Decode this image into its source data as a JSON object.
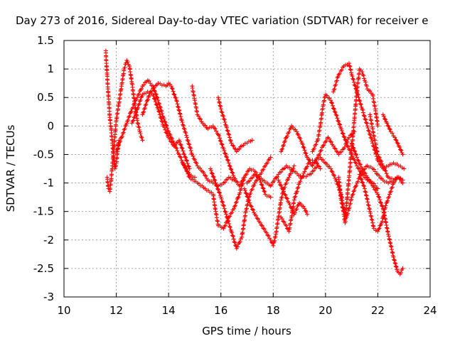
{
  "chart_data": {
    "type": "scatter",
    "title": "Day 273 of 2016, Sidereal Day-to-day VTEC variation (SDTVAR) for receiver e",
    "xlabel": "GPS time / hours",
    "ylabel": "SDTVAR / TECUs",
    "xlim": [
      10,
      24
    ],
    "ylim": [
      -3,
      1.5
    ],
    "xticks": [
      "10",
      "12",
      "14",
      "16",
      "18",
      "20",
      "22",
      "24"
    ],
    "yticks": [
      "1.5",
      "1",
      "0.5",
      "0",
      "-0.5",
      "-1",
      "-1.5",
      "-2",
      "-2.5",
      "-3"
    ],
    "grid": true,
    "marker": "+",
    "color": "#ff0000",
    "series": [
      {
        "points": [
          [
            11.6,
            1.32
          ],
          [
            11.62,
            1.1
          ],
          [
            11.65,
            0.9
          ],
          [
            11.68,
            0.65
          ],
          [
            11.72,
            0.4
          ],
          [
            11.75,
            0.15
          ],
          [
            11.8,
            -0.05
          ],
          [
            11.85,
            -0.3
          ],
          [
            11.9,
            -0.55
          ],
          [
            11.95,
            -0.75
          ],
          [
            12.0,
            -0.65
          ],
          [
            12.05,
            -0.45
          ],
          [
            12.1,
            -0.25
          ]
        ]
      },
      {
        "points": [
          [
            11.65,
            -0.9
          ],
          [
            11.7,
            -1.1
          ],
          [
            11.75,
            -1.15
          ],
          [
            11.8,
            -0.95
          ],
          [
            11.85,
            -0.7
          ],
          [
            11.9,
            -0.45
          ],
          [
            11.95,
            -0.15
          ],
          [
            12.0,
            0.1
          ],
          [
            12.1,
            0.4
          ],
          [
            12.2,
            0.7
          ],
          [
            12.3,
            1.0
          ],
          [
            12.4,
            1.15
          ],
          [
            12.5,
            1.05
          ],
          [
            12.6,
            0.75
          ],
          [
            12.7,
            0.4
          ],
          [
            12.8,
            0.1
          ],
          [
            12.9,
            -0.1
          ],
          [
            13.0,
            -0.25
          ]
        ]
      },
      {
        "points": [
          [
            12.0,
            -0.45
          ],
          [
            12.2,
            -0.2
          ],
          [
            12.4,
            0.05
          ],
          [
            12.6,
            0.3
          ],
          [
            12.8,
            0.5
          ],
          [
            13.0,
            0.7
          ],
          [
            13.2,
            0.8
          ],
          [
            13.4,
            0.7
          ],
          [
            13.6,
            0.45
          ],
          [
            13.8,
            0.15
          ],
          [
            14.0,
            -0.1
          ],
          [
            14.2,
            -0.3
          ],
          [
            14.4,
            -0.5
          ],
          [
            14.6,
            -0.7
          ],
          [
            14.8,
            -0.85
          ],
          [
            15.0,
            -0.9
          ]
        ]
      },
      {
        "points": [
          [
            12.6,
            0.05
          ],
          [
            12.8,
            0.3
          ],
          [
            13.0,
            0.55
          ],
          [
            13.2,
            0.6
          ],
          [
            13.4,
            0.55
          ],
          [
            13.6,
            0.3
          ],
          [
            13.8,
            0.0
          ],
          [
            14.0,
            -0.2
          ],
          [
            14.2,
            -0.35
          ],
          [
            14.4,
            -0.25
          ],
          [
            14.6,
            -0.5
          ],
          [
            14.8,
            -0.75
          ]
        ]
      },
      {
        "points": [
          [
            13.0,
            0.2
          ],
          [
            13.3,
            0.6
          ],
          [
            13.6,
            0.75
          ],
          [
            13.9,
            0.7
          ],
          [
            14.0,
            0.75
          ],
          [
            14.1,
            0.7
          ],
          [
            14.3,
            0.45
          ],
          [
            14.5,
            0.1
          ],
          [
            14.7,
            -0.2
          ],
          [
            14.9,
            -0.5
          ],
          [
            15.1,
            -0.7
          ],
          [
            15.3,
            -0.8
          ],
          [
            15.5,
            -0.95
          ],
          [
            15.7,
            -1.0
          ],
          [
            15.9,
            -1.05
          ],
          [
            16.1,
            -1.0
          ],
          [
            16.3,
            -0.9
          ],
          [
            16.5,
            -0.95
          ]
        ]
      },
      {
        "points": [
          [
            14.9,
            0.7
          ],
          [
            15.0,
            0.45
          ],
          [
            15.1,
            0.2
          ],
          [
            15.3,
            0.05
          ],
          [
            15.5,
            -0.05
          ],
          [
            15.7,
            0.0
          ],
          [
            15.9,
            -0.15
          ],
          [
            16.1,
            -0.4
          ],
          [
            16.3,
            -0.65
          ],
          [
            16.5,
            -0.9
          ],
          [
            16.7,
            -1.05
          ],
          [
            16.9,
            -0.9
          ],
          [
            17.1,
            -0.75
          ],
          [
            17.3,
            -0.8
          ],
          [
            17.5,
            -0.95
          ],
          [
            17.7,
            -1.2
          ],
          [
            17.9,
            -1.25
          ]
        ]
      },
      {
        "points": [
          [
            15.9,
            0.5
          ],
          [
            16.0,
            0.3
          ],
          [
            16.2,
            0.0
          ],
          [
            16.4,
            -0.3
          ],
          [
            16.6,
            -0.45
          ],
          [
            16.8,
            -0.35
          ],
          [
            17.0,
            -0.3
          ],
          [
            17.2,
            -0.25
          ]
        ]
      },
      {
        "points": [
          [
            14.5,
            -0.6
          ],
          [
            14.8,
            -0.9
          ],
          [
            15.1,
            -1.0
          ],
          [
            15.4,
            -1.1
          ],
          [
            15.7,
            -1.2
          ],
          [
            15.8,
            -1.5
          ],
          [
            15.9,
            -1.75
          ],
          [
            16.1,
            -1.8
          ],
          [
            16.3,
            -1.6
          ],
          [
            16.5,
            -1.45
          ],
          [
            16.7,
            -1.2
          ],
          [
            16.9,
            -0.9
          ]
        ]
      },
      {
        "points": [
          [
            15.6,
            -0.75
          ],
          [
            15.8,
            -1.0
          ],
          [
            16.0,
            -1.25
          ],
          [
            16.2,
            -1.55
          ],
          [
            16.4,
            -1.85
          ],
          [
            16.6,
            -2.15
          ],
          [
            16.8,
            -1.95
          ],
          [
            16.95,
            -1.5
          ],
          [
            17.1,
            -1.2
          ],
          [
            17.3,
            -1.0
          ],
          [
            17.5,
            -0.85
          ],
          [
            17.7,
            -0.7
          ],
          [
            17.9,
            -0.55
          ]
        ]
      },
      {
        "points": [
          [
            16.9,
            -1.1
          ],
          [
            17.1,
            -1.35
          ],
          [
            17.3,
            -1.55
          ],
          [
            17.5,
            -1.7
          ],
          [
            17.7,
            -1.85
          ],
          [
            17.9,
            -2.0
          ],
          [
            18.0,
            -2.1
          ],
          [
            18.1,
            -1.9
          ],
          [
            18.2,
            -1.6
          ],
          [
            18.3,
            -1.3
          ],
          [
            18.4,
            -1.1
          ],
          [
            18.6,
            -0.9
          ],
          [
            18.8,
            -0.7
          ]
        ]
      },
      {
        "points": [
          [
            17.0,
            -1.0
          ],
          [
            17.3,
            -0.85
          ],
          [
            17.6,
            -0.95
          ],
          [
            17.9,
            -1.05
          ],
          [
            18.2,
            -0.85
          ],
          [
            18.5,
            -0.7
          ],
          [
            18.8,
            -0.8
          ],
          [
            19.1,
            -0.9
          ],
          [
            19.4,
            -0.85
          ],
          [
            19.7,
            -0.7
          ]
        ]
      },
      {
        "points": [
          [
            18.2,
            -0.95
          ],
          [
            18.4,
            -1.15
          ],
          [
            18.6,
            -1.35
          ],
          [
            18.8,
            -1.55
          ],
          [
            19.0,
            -1.35
          ],
          [
            19.2,
            -1.45
          ],
          [
            19.3,
            -1.55
          ]
        ]
      },
      {
        "points": [
          [
            18.3,
            -1.6
          ],
          [
            18.5,
            -1.75
          ],
          [
            18.6,
            -1.85
          ],
          [
            18.7,
            -1.6
          ],
          [
            18.8,
            -1.3
          ],
          [
            19.0,
            -1.0
          ],
          [
            19.2,
            -0.8
          ],
          [
            19.4,
            -0.6
          ],
          [
            19.6,
            -0.6
          ],
          [
            19.8,
            -0.75
          ]
        ]
      },
      {
        "points": [
          [
            18.3,
            -0.45
          ],
          [
            18.5,
            -0.2
          ],
          [
            18.7,
            0.0
          ],
          [
            18.9,
            -0.1
          ],
          [
            19.1,
            -0.3
          ],
          [
            19.3,
            -0.55
          ],
          [
            19.5,
            -0.7
          ],
          [
            19.7,
            -0.55
          ],
          [
            19.9,
            -0.35
          ],
          [
            20.1,
            -0.2
          ],
          [
            20.3,
            -0.35
          ],
          [
            20.5,
            -0.5
          ],
          [
            20.7,
            -0.4
          ],
          [
            20.9,
            -0.2
          ],
          [
            21.1,
            -0.1
          ]
        ]
      },
      {
        "points": [
          [
            19.5,
            -0.45
          ],
          [
            19.7,
            -0.25
          ],
          [
            19.8,
            0.0
          ],
          [
            19.9,
            0.35
          ],
          [
            20.0,
            0.55
          ],
          [
            20.2,
            0.45
          ],
          [
            20.4,
            0.2
          ],
          [
            20.6,
            -0.05
          ],
          [
            20.8,
            -0.3
          ],
          [
            21.0,
            -0.5
          ],
          [
            21.2,
            -0.7
          ],
          [
            21.4,
            -0.85
          ],
          [
            21.6,
            -0.95
          ],
          [
            21.8,
            -1.0
          ],
          [
            22.0,
            -1.1
          ]
        ]
      },
      {
        "points": [
          [
            19.6,
            -0.6
          ],
          [
            19.8,
            -0.55
          ],
          [
            20.0,
            -0.65
          ],
          [
            20.2,
            -0.75
          ],
          [
            20.4,
            -0.95
          ],
          [
            20.6,
            -1.2
          ],
          [
            20.7,
            -1.45
          ],
          [
            20.8,
            -1.6
          ],
          [
            20.9,
            -1.45
          ],
          [
            21.0,
            -1.25
          ],
          [
            21.2,
            -1.0
          ],
          [
            21.4,
            -0.8
          ],
          [
            21.6,
            -0.7
          ],
          [
            21.8,
            -0.75
          ],
          [
            22.0,
            -0.85
          ],
          [
            22.2,
            -0.95
          ],
          [
            22.4,
            -1.0
          ],
          [
            22.6,
            -0.95
          ],
          [
            22.8,
            -0.9
          ],
          [
            22.95,
            -0.95
          ]
        ]
      },
      {
        "points": [
          [
            20.5,
            -0.9
          ],
          [
            20.6,
            -1.3
          ],
          [
            20.7,
            -1.55
          ],
          [
            20.75,
            -1.7
          ],
          [
            20.8,
            -1.4
          ],
          [
            20.9,
            -0.9
          ],
          [
            21.0,
            -0.4
          ],
          [
            21.1,
            0.1
          ],
          [
            21.2,
            0.6
          ],
          [
            21.3,
            1.0
          ],
          [
            21.4,
            0.95
          ],
          [
            21.5,
            0.8
          ],
          [
            21.6,
            0.65
          ],
          [
            21.8,
            0.55
          ],
          [
            21.9,
            0.3
          ],
          [
            22.0,
            0.0
          ]
        ]
      },
      {
        "points": [
          [
            20.3,
            0.6
          ],
          [
            20.5,
            0.9
          ],
          [
            20.7,
            1.05
          ],
          [
            20.9,
            1.1
          ],
          [
            21.0,
            0.9
          ],
          [
            21.2,
            0.6
          ],
          [
            21.4,
            0.3
          ],
          [
            21.6,
            0.0
          ],
          [
            21.8,
            -0.3
          ],
          [
            22.0,
            -0.6
          ],
          [
            22.2,
            -0.75
          ],
          [
            22.4,
            -0.7
          ],
          [
            22.6,
            -0.65
          ],
          [
            22.8,
            -0.7
          ],
          [
            23.0,
            -0.75
          ]
        ]
      },
      {
        "points": [
          [
            21.0,
            -0.3
          ],
          [
            21.2,
            -0.55
          ],
          [
            21.4,
            -0.75
          ],
          [
            21.6,
            -0.9
          ],
          [
            21.8,
            -1.05
          ],
          [
            22.0,
            -1.2
          ],
          [
            22.2,
            -1.45
          ],
          [
            22.4,
            -1.9
          ],
          [
            22.6,
            -2.3
          ],
          [
            22.75,
            -2.55
          ],
          [
            22.85,
            -2.6
          ],
          [
            22.95,
            -2.5
          ]
        ]
      },
      {
        "points": [
          [
            21.3,
            -0.85
          ],
          [
            21.5,
            -1.1
          ],
          [
            21.7,
            -1.5
          ],
          [
            21.85,
            -1.8
          ],
          [
            22.0,
            -1.85
          ],
          [
            22.15,
            -1.7
          ],
          [
            22.3,
            -1.4
          ],
          [
            22.45,
            -1.2
          ],
          [
            22.6,
            -1.0
          ],
          [
            22.75,
            -0.9
          ],
          [
            22.9,
            -0.95
          ]
        ]
      },
      {
        "points": [
          [
            21.7,
            0.2
          ],
          [
            21.8,
            -0.05
          ],
          [
            21.9,
            -0.3
          ],
          [
            22.0,
            -0.5
          ],
          [
            22.2,
            -0.7
          ],
          [
            22.4,
            -0.9
          ],
          [
            22.6,
            -0.95
          ],
          [
            22.8,
            -0.9
          ],
          [
            22.95,
            -1.0
          ]
        ]
      },
      {
        "points": [
          [
            22.2,
            0.2
          ],
          [
            22.35,
            0.05
          ],
          [
            22.5,
            -0.1
          ],
          [
            22.65,
            -0.2
          ],
          [
            22.8,
            -0.35
          ],
          [
            22.95,
            -0.5
          ]
        ]
      }
    ]
  }
}
